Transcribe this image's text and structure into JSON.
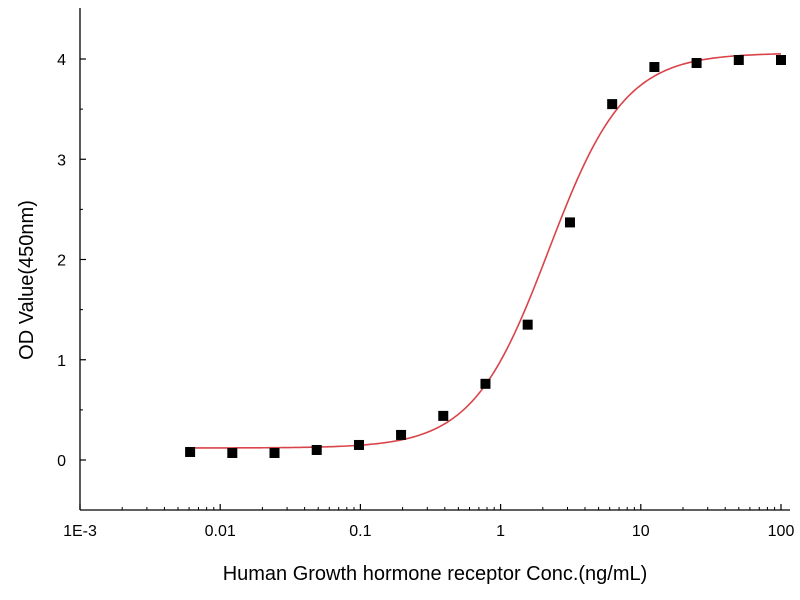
{
  "chart_data": {
    "type": "scatter",
    "xlabel": "Human Growth hormone receptor Conc.(ng/mL)",
    "ylabel": "OD Value(450nm)",
    "x_scale": "log",
    "xlim": [
      0.001,
      100
    ],
    "ylim": [
      -0.5,
      4.5
    ],
    "x_ticks": [
      {
        "value": 0.001,
        "label": "1E-3"
      },
      {
        "value": 0.01,
        "label": "0.01"
      },
      {
        "value": 0.1,
        "label": "0.1"
      },
      {
        "value": 1,
        "label": "1"
      },
      {
        "value": 10,
        "label": "10"
      },
      {
        "value": 100,
        "label": "100"
      }
    ],
    "y_ticks": [
      {
        "value": 0,
        "label": "0"
      },
      {
        "value": 1,
        "label": "1"
      },
      {
        "value": 2,
        "label": "2"
      },
      {
        "value": 3,
        "label": "3"
      },
      {
        "value": 4,
        "label": "4"
      }
    ],
    "grid": false,
    "series": [
      {
        "kind": "points",
        "marker": "square",
        "color": "#000000",
        "x": [
          0.0061,
          0.0122,
          0.0244,
          0.0488,
          0.0977,
          0.195,
          0.39,
          0.78,
          1.56,
          3.125,
          6.25,
          12.5,
          25,
          50,
          100
        ],
        "y": [
          0.08,
          0.07,
          0.07,
          0.1,
          0.15,
          0.25,
          0.44,
          0.76,
          1.35,
          2.37,
          3.55,
          3.92,
          3.96,
          3.99,
          3.99
        ]
      },
      {
        "kind": "fit-curve",
        "color": "#d9434a",
        "model": "4PL",
        "bottom": 0.12,
        "top": 4.06,
        "ec50": 2.2,
        "hill": 1.6,
        "x_range": [
          0.006,
          100
        ]
      }
    ]
  }
}
